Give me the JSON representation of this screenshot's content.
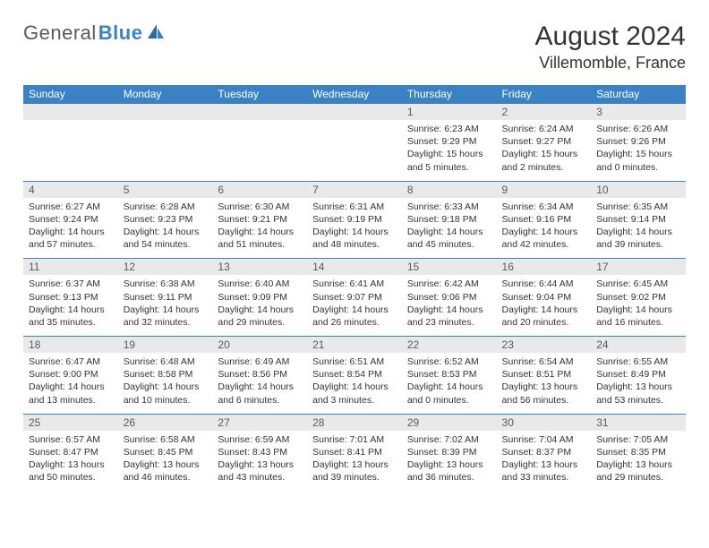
{
  "brand": {
    "name1": "General",
    "name2": "Blue"
  },
  "title": "August 2024",
  "location": "Villemomble, France",
  "day_names": [
    "Sunday",
    "Monday",
    "Tuesday",
    "Wednesday",
    "Thursday",
    "Friday",
    "Saturday"
  ],
  "colors": {
    "header_bg": "#3b82c4",
    "header_text": "#ffffff",
    "daynum_bg": "#e9e9e9",
    "text": "#333333",
    "logo_gray": "#5a5a5a",
    "logo_blue": "#3b82c4"
  },
  "weeks": [
    [
      {
        "num": "",
        "sunrise": "",
        "sunset": "",
        "dl1": "",
        "dl2": ""
      },
      {
        "num": "",
        "sunrise": "",
        "sunset": "",
        "dl1": "",
        "dl2": ""
      },
      {
        "num": "",
        "sunrise": "",
        "sunset": "",
        "dl1": "",
        "dl2": ""
      },
      {
        "num": "",
        "sunrise": "",
        "sunset": "",
        "dl1": "",
        "dl2": ""
      },
      {
        "num": "1",
        "sunrise": "Sunrise: 6:23 AM",
        "sunset": "Sunset: 9:29 PM",
        "dl1": "Daylight: 15 hours",
        "dl2": "and 5 minutes."
      },
      {
        "num": "2",
        "sunrise": "Sunrise: 6:24 AM",
        "sunset": "Sunset: 9:27 PM",
        "dl1": "Daylight: 15 hours",
        "dl2": "and 2 minutes."
      },
      {
        "num": "3",
        "sunrise": "Sunrise: 6:26 AM",
        "sunset": "Sunset: 9:26 PM",
        "dl1": "Daylight: 15 hours",
        "dl2": "and 0 minutes."
      }
    ],
    [
      {
        "num": "4",
        "sunrise": "Sunrise: 6:27 AM",
        "sunset": "Sunset: 9:24 PM",
        "dl1": "Daylight: 14 hours",
        "dl2": "and 57 minutes."
      },
      {
        "num": "5",
        "sunrise": "Sunrise: 6:28 AM",
        "sunset": "Sunset: 9:23 PM",
        "dl1": "Daylight: 14 hours",
        "dl2": "and 54 minutes."
      },
      {
        "num": "6",
        "sunrise": "Sunrise: 6:30 AM",
        "sunset": "Sunset: 9:21 PM",
        "dl1": "Daylight: 14 hours",
        "dl2": "and 51 minutes."
      },
      {
        "num": "7",
        "sunrise": "Sunrise: 6:31 AM",
        "sunset": "Sunset: 9:19 PM",
        "dl1": "Daylight: 14 hours",
        "dl2": "and 48 minutes."
      },
      {
        "num": "8",
        "sunrise": "Sunrise: 6:33 AM",
        "sunset": "Sunset: 9:18 PM",
        "dl1": "Daylight: 14 hours",
        "dl2": "and 45 minutes."
      },
      {
        "num": "9",
        "sunrise": "Sunrise: 6:34 AM",
        "sunset": "Sunset: 9:16 PM",
        "dl1": "Daylight: 14 hours",
        "dl2": "and 42 minutes."
      },
      {
        "num": "10",
        "sunrise": "Sunrise: 6:35 AM",
        "sunset": "Sunset: 9:14 PM",
        "dl1": "Daylight: 14 hours",
        "dl2": "and 39 minutes."
      }
    ],
    [
      {
        "num": "11",
        "sunrise": "Sunrise: 6:37 AM",
        "sunset": "Sunset: 9:13 PM",
        "dl1": "Daylight: 14 hours",
        "dl2": "and 35 minutes."
      },
      {
        "num": "12",
        "sunrise": "Sunrise: 6:38 AM",
        "sunset": "Sunset: 9:11 PM",
        "dl1": "Daylight: 14 hours",
        "dl2": "and 32 minutes."
      },
      {
        "num": "13",
        "sunrise": "Sunrise: 6:40 AM",
        "sunset": "Sunset: 9:09 PM",
        "dl1": "Daylight: 14 hours",
        "dl2": "and 29 minutes."
      },
      {
        "num": "14",
        "sunrise": "Sunrise: 6:41 AM",
        "sunset": "Sunset: 9:07 PM",
        "dl1": "Daylight: 14 hours",
        "dl2": "and 26 minutes."
      },
      {
        "num": "15",
        "sunrise": "Sunrise: 6:42 AM",
        "sunset": "Sunset: 9:06 PM",
        "dl1": "Daylight: 14 hours",
        "dl2": "and 23 minutes."
      },
      {
        "num": "16",
        "sunrise": "Sunrise: 6:44 AM",
        "sunset": "Sunset: 9:04 PM",
        "dl1": "Daylight: 14 hours",
        "dl2": "and 20 minutes."
      },
      {
        "num": "17",
        "sunrise": "Sunrise: 6:45 AM",
        "sunset": "Sunset: 9:02 PM",
        "dl1": "Daylight: 14 hours",
        "dl2": "and 16 minutes."
      }
    ],
    [
      {
        "num": "18",
        "sunrise": "Sunrise: 6:47 AM",
        "sunset": "Sunset: 9:00 PM",
        "dl1": "Daylight: 14 hours",
        "dl2": "and 13 minutes."
      },
      {
        "num": "19",
        "sunrise": "Sunrise: 6:48 AM",
        "sunset": "Sunset: 8:58 PM",
        "dl1": "Daylight: 14 hours",
        "dl2": "and 10 minutes."
      },
      {
        "num": "20",
        "sunrise": "Sunrise: 6:49 AM",
        "sunset": "Sunset: 8:56 PM",
        "dl1": "Daylight: 14 hours",
        "dl2": "and 6 minutes."
      },
      {
        "num": "21",
        "sunrise": "Sunrise: 6:51 AM",
        "sunset": "Sunset: 8:54 PM",
        "dl1": "Daylight: 14 hours",
        "dl2": "and 3 minutes."
      },
      {
        "num": "22",
        "sunrise": "Sunrise: 6:52 AM",
        "sunset": "Sunset: 8:53 PM",
        "dl1": "Daylight: 14 hours",
        "dl2": "and 0 minutes."
      },
      {
        "num": "23",
        "sunrise": "Sunrise: 6:54 AM",
        "sunset": "Sunset: 8:51 PM",
        "dl1": "Daylight: 13 hours",
        "dl2": "and 56 minutes."
      },
      {
        "num": "24",
        "sunrise": "Sunrise: 6:55 AM",
        "sunset": "Sunset: 8:49 PM",
        "dl1": "Daylight: 13 hours",
        "dl2": "and 53 minutes."
      }
    ],
    [
      {
        "num": "25",
        "sunrise": "Sunrise: 6:57 AM",
        "sunset": "Sunset: 8:47 PM",
        "dl1": "Daylight: 13 hours",
        "dl2": "and 50 minutes."
      },
      {
        "num": "26",
        "sunrise": "Sunrise: 6:58 AM",
        "sunset": "Sunset: 8:45 PM",
        "dl1": "Daylight: 13 hours",
        "dl2": "and 46 minutes."
      },
      {
        "num": "27",
        "sunrise": "Sunrise: 6:59 AM",
        "sunset": "Sunset: 8:43 PM",
        "dl1": "Daylight: 13 hours",
        "dl2": "and 43 minutes."
      },
      {
        "num": "28",
        "sunrise": "Sunrise: 7:01 AM",
        "sunset": "Sunset: 8:41 PM",
        "dl1": "Daylight: 13 hours",
        "dl2": "and 39 minutes."
      },
      {
        "num": "29",
        "sunrise": "Sunrise: 7:02 AM",
        "sunset": "Sunset: 8:39 PM",
        "dl1": "Daylight: 13 hours",
        "dl2": "and 36 minutes."
      },
      {
        "num": "30",
        "sunrise": "Sunrise: 7:04 AM",
        "sunset": "Sunset: 8:37 PM",
        "dl1": "Daylight: 13 hours",
        "dl2": "and 33 minutes."
      },
      {
        "num": "31",
        "sunrise": "Sunrise: 7:05 AM",
        "sunset": "Sunset: 8:35 PM",
        "dl1": "Daylight: 13 hours",
        "dl2": "and 29 minutes."
      }
    ]
  ]
}
